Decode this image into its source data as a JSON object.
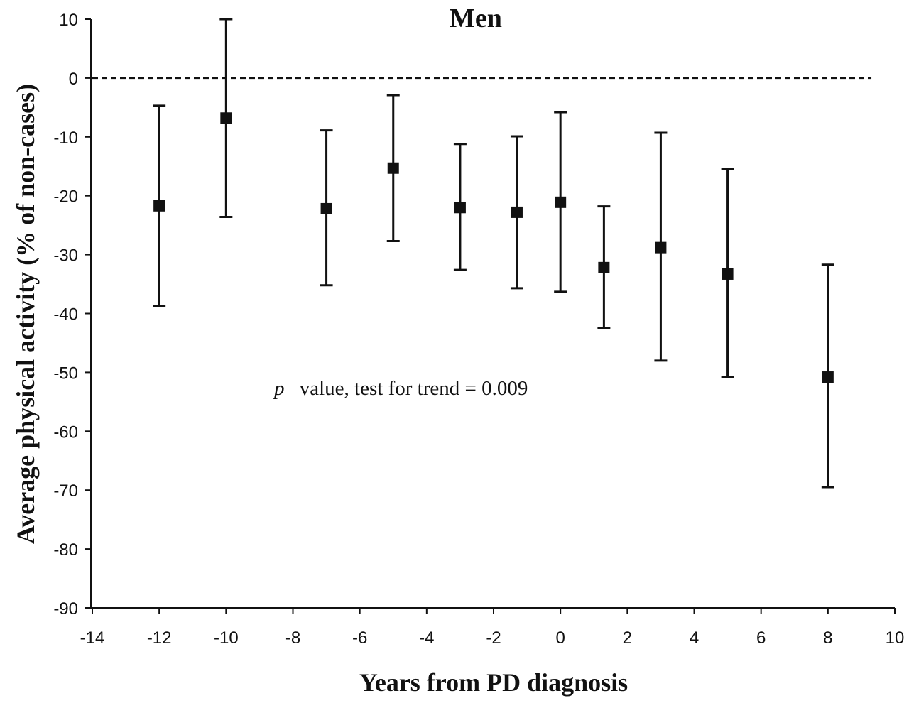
{
  "chart_data": {
    "type": "scatter",
    "title": "Men",
    "xlabel": "Years from PD diagnosis",
    "ylabel": "Average physical activity (% of non-cases)",
    "xlim": [
      -14,
      10
    ],
    "ylim": [
      -90,
      10
    ],
    "x_ticks": [
      -14,
      -12,
      -10,
      -8,
      -6,
      -4,
      -2,
      0,
      2,
      4,
      6,
      8,
      10
    ],
    "x_tick_labels": [
      "-14",
      "-12",
      "-10",
      "-8",
      "-6",
      "-4",
      "-2",
      "0",
      "2",
      "4",
      "6",
      "8",
      "10"
    ],
    "y_ticks": [
      10,
      0,
      -10,
      -20,
      -30,
      -40,
      -50,
      -60,
      -70,
      -80,
      -90
    ],
    "y_tick_labels": [
      "10",
      "0",
      "-10",
      "-20",
      "-30",
      "-40",
      "-50",
      "-60",
      "-70",
      "-80",
      "-90"
    ],
    "grid": false,
    "reference_line": {
      "y": 0,
      "x_range": [
        -14,
        9.3
      ],
      "style": "dashed"
    },
    "annotation": {
      "italic": "p",
      "text": "value, test for trend = 0.009"
    },
    "series": [
      {
        "name": "Men",
        "marker": "square",
        "points": [
          {
            "x": -12,
            "y": -21.7,
            "lower": -38.7,
            "upper": -4.7
          },
          {
            "x": -10,
            "y": -6.8,
            "lower": -23.6,
            "upper": 10.0
          },
          {
            "x": -7,
            "y": -22.2,
            "lower": -35.2,
            "upper": -8.9
          },
          {
            "x": -5,
            "y": -15.3,
            "lower": -27.7,
            "upper": -2.9
          },
          {
            "x": -3,
            "y": -22.0,
            "lower": -32.6,
            "upper": -11.2
          },
          {
            "x": -1.3,
            "y": -22.8,
            "lower": -35.7,
            "upper": -9.9
          },
          {
            "x": 0,
            "y": -21.1,
            "lower": -36.3,
            "upper": -5.8
          },
          {
            "x": 1.3,
            "y": -32.2,
            "lower": -42.5,
            "upper": -21.8
          },
          {
            "x": 3,
            "y": -28.8,
            "lower": -48.0,
            "upper": -9.3
          },
          {
            "x": 5,
            "y": -33.3,
            "lower": -50.8,
            "upper": -15.4
          },
          {
            "x": 8,
            "y": -50.8,
            "lower": -69.5,
            "upper": -31.7
          }
        ]
      }
    ]
  },
  "colors": {
    "ink": "#111111",
    "background": "#ffffff"
  }
}
